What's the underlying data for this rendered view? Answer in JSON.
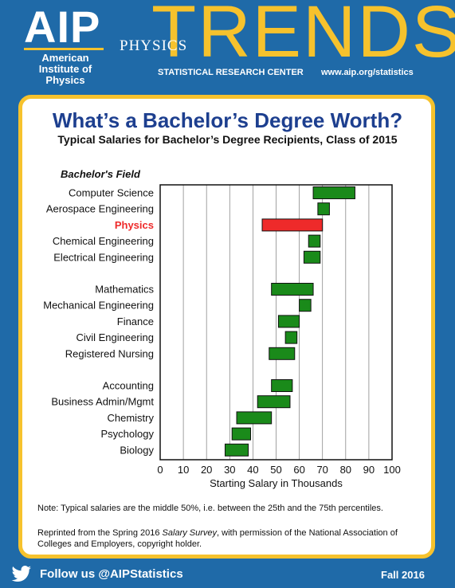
{
  "header": {
    "logo": "AIP",
    "org_name": "American Institute of Physics",
    "physics": "PHYSICS",
    "trends": "TRENDS",
    "research_center": "STATISTICAL RESEARCH CENTER",
    "website": "www.aip.org/statistics",
    "accent_color": "#f6c22d",
    "background_color": "#1f6aa8"
  },
  "card": {
    "title": "What’s a Bachelor’s Degree Worth?",
    "subtitle": "Typical Salaries for Bachelor’s Degree Recipients, Class of 2015",
    "note": "Note: Typical salaries are the middle 50%, i.e. between the 25th and the 75th percentiles.",
    "reprint_before": "Reprinted from the Spring 2016 ",
    "reprint_italic": "Salary Survey",
    "reprint_after": ", with permission of the National Association of Colleges and Employers, copyright holder."
  },
  "footer": {
    "follow": "Follow us @AIPStatistics",
    "edition": "Fall 2016",
    "icon": "twitter-bird-icon"
  },
  "chart_data": {
    "type": "bar",
    "orientation": "horizontal-range",
    "ylabel": "Bachelor's Field",
    "xlabel": "Starting Salary in Thousands",
    "xlim": [
      0,
      100
    ],
    "xticks": [
      0,
      10,
      20,
      30,
      40,
      50,
      60,
      70,
      80,
      90,
      100
    ],
    "grid": true,
    "highlight_color": "#ee2a2a",
    "bar_color": "#1a8a1a",
    "groups": [
      [
        {
          "field": "Computer Science",
          "low": 66,
          "high": 84
        },
        {
          "field": "Aerospace Engineering",
          "low": 68,
          "high": 73
        },
        {
          "field": "Physics",
          "low": 44,
          "high": 70,
          "highlight": true
        },
        {
          "field": "Chemical Engineering",
          "low": 64,
          "high": 69
        },
        {
          "field": "Electrical Engineering",
          "low": 62,
          "high": 69
        }
      ],
      [
        {
          "field": "Mathematics",
          "low": 48,
          "high": 66
        },
        {
          "field": "Mechanical Engineering",
          "low": 60,
          "high": 65
        },
        {
          "field": "Finance",
          "low": 51,
          "high": 60
        },
        {
          "field": "Civil Engineering",
          "low": 54,
          "high": 59
        },
        {
          "field": "Registered Nursing",
          "low": 47,
          "high": 58
        }
      ],
      [
        {
          "field": "Accounting",
          "low": 48,
          "high": 57
        },
        {
          "field": "Business Admin/Mgmt",
          "low": 42,
          "high": 56
        },
        {
          "field": "Chemistry",
          "low": 33,
          "high": 48
        },
        {
          "field": "Psychology",
          "low": 31,
          "high": 39
        },
        {
          "field": "Biology",
          "low": 28,
          "high": 38
        }
      ]
    ]
  }
}
